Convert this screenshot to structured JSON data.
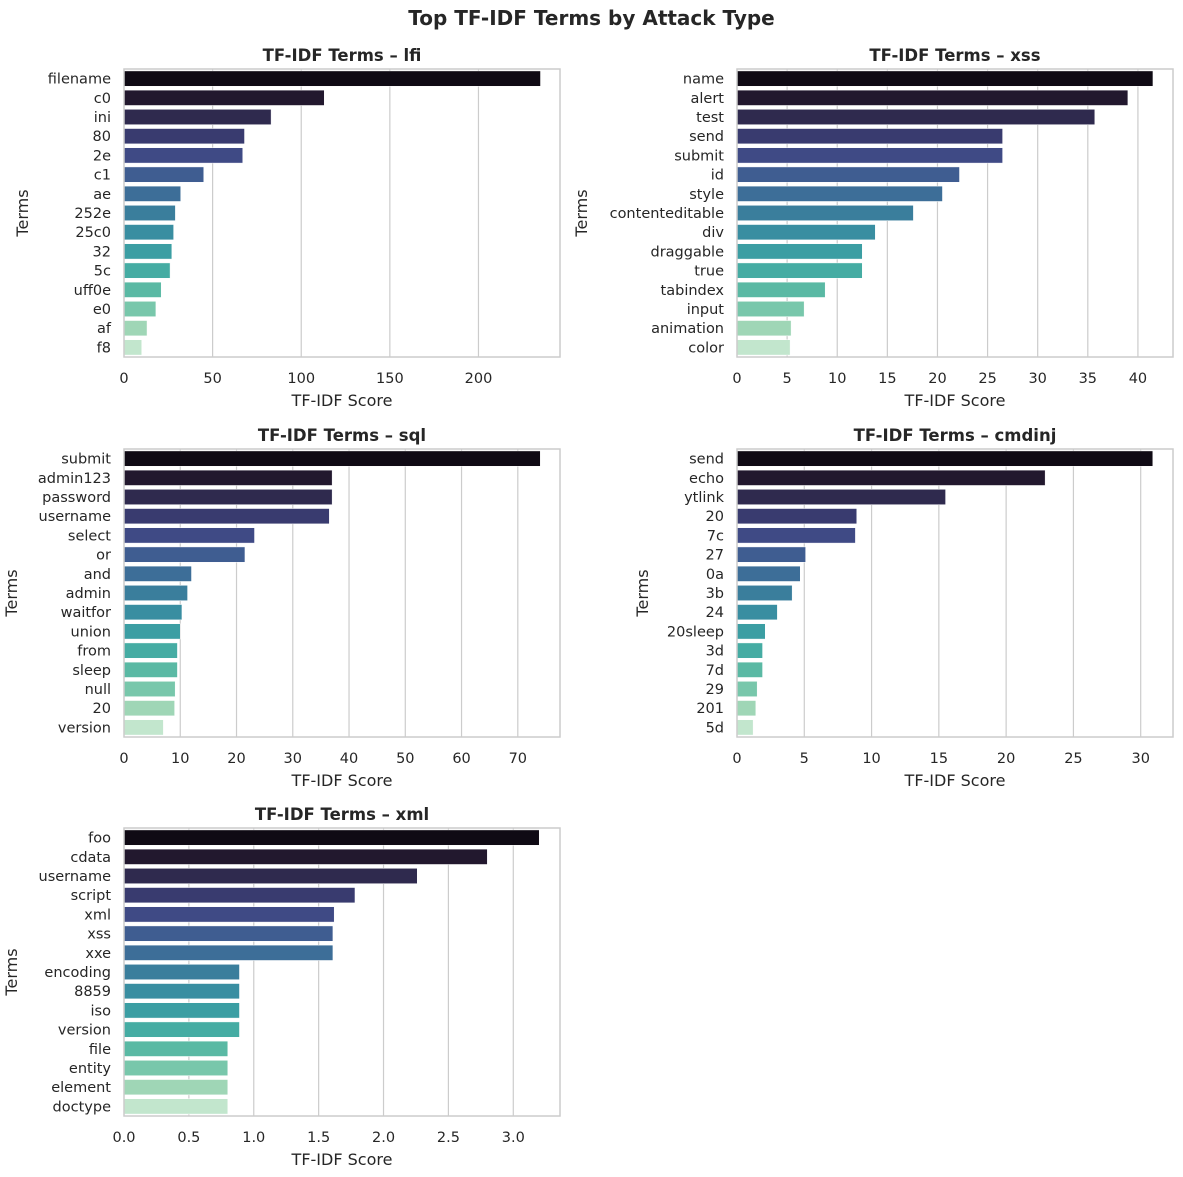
{
  "figure_title": "Top TF-IDF Terms by Attack Type",
  "palette": [
    "#0f0a14",
    "#22182e",
    "#2f2a4e",
    "#393b6f",
    "#3f4a85",
    "#3f5d91",
    "#3d6e98",
    "#3a7e9c",
    "#398ea1",
    "#3b9ea3",
    "#45aca3",
    "#5ab9a4",
    "#78c7ab",
    "#9fd6b6",
    "#c2e6cd"
  ],
  "chart_data": [
    {
      "type": "bar",
      "orientation": "horizontal",
      "title": "TF-IDF Terms – lfi",
      "xlabel": "TF-IDF Score",
      "ylabel": "Terms",
      "categories": [
        "filename",
        "c0",
        "ini",
        "80",
        "2e",
        "c1",
        "ae",
        "252e",
        "25c0",
        "32",
        "5c",
        "uff0e",
        "e0",
        "af",
        "f8"
      ],
      "values": [
        235,
        113,
        83,
        68,
        67,
        45,
        32,
        29,
        28,
        27,
        26,
        21,
        18,
        13,
        10
      ],
      "xlim": [
        0,
        246
      ],
      "xticks": [
        0,
        50,
        100,
        150,
        200
      ],
      "xtick_labels": [
        "0",
        "50",
        "100",
        "150",
        "200"
      ]
    },
    {
      "type": "bar",
      "orientation": "horizontal",
      "title": "TF-IDF Terms – xss",
      "xlabel": "TF-IDF Score",
      "ylabel": "Terms",
      "categories": [
        "name",
        "alert",
        "test",
        "send",
        "submit",
        "id",
        "style",
        "contenteditable",
        "div",
        "draggable",
        "true",
        "tabindex",
        "input",
        "animation",
        "color"
      ],
      "values": [
        41.5,
        39.0,
        35.7,
        26.5,
        26.5,
        22.2,
        20.5,
        17.6,
        13.8,
        12.5,
        12.5,
        8.8,
        6.7,
        5.4,
        5.3
      ],
      "xlim": [
        0,
        43.5
      ],
      "xticks": [
        0,
        5,
        10,
        15,
        20,
        25,
        30,
        35,
        40
      ],
      "xtick_labels": [
        "0",
        "5",
        "10",
        "15",
        "20",
        "25",
        "30",
        "35",
        "40"
      ]
    },
    {
      "type": "bar",
      "orientation": "horizontal",
      "title": "TF-IDF Terms – sql",
      "xlabel": "TF-IDF Score",
      "ylabel": "Terms",
      "categories": [
        "submit",
        "admin123",
        "password",
        "username",
        "select",
        "or",
        "and",
        "admin",
        "waitfor",
        "union",
        "from",
        "sleep",
        "null",
        "20",
        "version"
      ],
      "values": [
        74,
        37,
        37,
        36.5,
        23.2,
        21.5,
        12,
        11.3,
        10.3,
        10,
        9.5,
        9.5,
        9.1,
        9.0,
        7.0
      ],
      "xlim": [
        0,
        77.5
      ],
      "xticks": [
        0,
        10,
        20,
        30,
        40,
        50,
        60,
        70
      ],
      "xtick_labels": [
        "0",
        "10",
        "20",
        "30",
        "40",
        "50",
        "60",
        "70"
      ]
    },
    {
      "type": "bar",
      "orientation": "horizontal",
      "title": "TF-IDF Terms – cmdinj",
      "xlabel": "TF-IDF Score",
      "ylabel": "Terms",
      "categories": [
        "send",
        "echo",
        "ytlink",
        "20",
        "7c",
        "27",
        "0a",
        "3b",
        "24",
        "20sleep",
        "3d",
        "7d",
        "29",
        "201",
        "5d"
      ],
      "values": [
        30.9,
        22.9,
        15.5,
        8.9,
        8.8,
        5.1,
        4.7,
        4.1,
        3.0,
        2.1,
        1.9,
        1.9,
        1.5,
        1.4,
        1.2
      ],
      "xlim": [
        0,
        32.4
      ],
      "xticks": [
        0,
        5,
        10,
        15,
        20,
        25,
        30
      ],
      "xtick_labels": [
        "0",
        "5",
        "10",
        "15",
        "20",
        "25",
        "30"
      ]
    },
    {
      "type": "bar",
      "orientation": "horizontal",
      "title": "TF-IDF Terms – xml",
      "xlabel": "TF-IDF Score",
      "ylabel": "Terms",
      "categories": [
        "foo",
        "cdata",
        "username",
        "script",
        "xml",
        "xss",
        "xxe",
        "encoding",
        "8859",
        "iso",
        "version",
        "file",
        "entity",
        "element",
        "doctype"
      ],
      "values": [
        3.2,
        2.8,
        2.26,
        1.78,
        1.62,
        1.61,
        1.61,
        0.89,
        0.89,
        0.89,
        0.89,
        0.8,
        0.8,
        0.8,
        0.8
      ],
      "xlim": [
        0,
        3.36
      ],
      "xticks": [
        0,
        0.5,
        1.0,
        1.5,
        2.0,
        2.5,
        3.0
      ],
      "xtick_labels": [
        "0.0",
        "0.5",
        "1.0",
        "1.5",
        "2.0",
        "2.5",
        "3.0"
      ]
    }
  ]
}
